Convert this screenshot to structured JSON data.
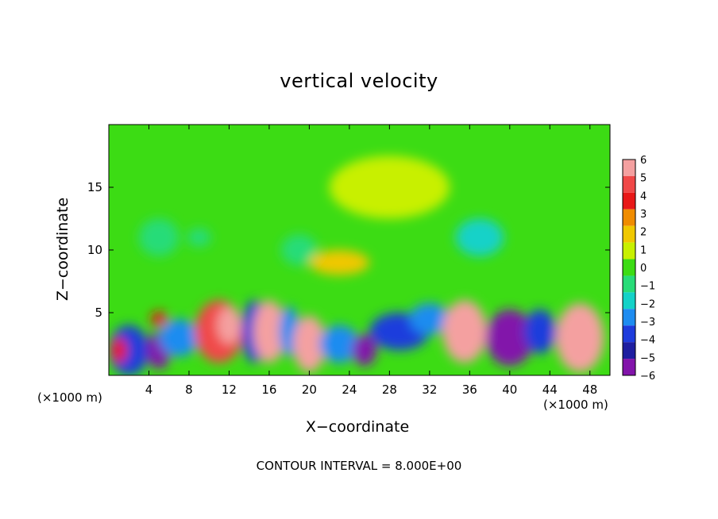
{
  "chart_data": {
    "type": "heatmap",
    "title": "vertical velocity",
    "xlabel": "X−coordinate",
    "ylabel": "Z−coordinate",
    "x_unit_left": "(×1000 m)",
    "x_unit_right": "(×1000 m)",
    "footer": "CONTOUR INTERVAL = 8.000E+00",
    "xlim": [
      0,
      50
    ],
    "ylim": [
      0,
      20
    ],
    "x_ticks": [
      4,
      8,
      12,
      16,
      20,
      24,
      28,
      32,
      36,
      40,
      44,
      48
    ],
    "x_tick_labels": [
      "4",
      "8",
      "12",
      "16",
      "20",
      "24",
      "28",
      "32",
      "36",
      "40",
      "44",
      "48"
    ],
    "y_ticks": [
      5,
      10,
      15
    ],
    "y_tick_labels": [
      "5",
      "10",
      "15"
    ],
    "colorbar": {
      "levels": [
        6,
        5,
        4,
        3,
        2,
        1,
        0,
        -1,
        -2,
        -3,
        -4,
        -5,
        -6
      ],
      "labels": [
        "6",
        "5",
        "4",
        "3",
        "2",
        "1",
        "0",
        "−1",
        "−2",
        "−3",
        "−4",
        "−5",
        "−6"
      ],
      "colors": [
        "#f4a0a0",
        "#f04848",
        "#e81818",
        "#f08c00",
        "#f0c800",
        "#c8f000",
        "#3cdc14",
        "#28dc78",
        "#14d2c8",
        "#1e8cf0",
        "#1e3cdc",
        "#1e1ea0",
        "#8214aa"
      ]
    },
    "cells": [
      {
        "x": 2,
        "z": 2,
        "w": 2.0,
        "h": 4,
        "value": -4
      },
      {
        "x": 5,
        "z": 2,
        "w": 1.2,
        "h": 3,
        "value": -6
      },
      {
        "x": 5,
        "z": 4.5,
        "w": 0.8,
        "h": 1.2,
        "value": 4
      },
      {
        "x": 7,
        "z": 3,
        "w": 2.0,
        "h": 3,
        "value": -3
      },
      {
        "x": 11,
        "z": 3.5,
        "w": 2.4,
        "h": 5,
        "value": 5
      },
      {
        "x": 12,
        "z": 4,
        "w": 1.2,
        "h": 3,
        "value": 6
      },
      {
        "x": 14.5,
        "z": 3.5,
        "w": 1.2,
        "h": 5,
        "value": -4
      },
      {
        "x": 16,
        "z": 3.5,
        "w": 1.6,
        "h": 5,
        "value": 6
      },
      {
        "x": 18,
        "z": 3.5,
        "w": 1.0,
        "h": 4,
        "value": -3
      },
      {
        "x": 20,
        "z": 2.5,
        "w": 1.6,
        "h": 4.5,
        "value": 6
      },
      {
        "x": 23,
        "z": 2.5,
        "w": 2.0,
        "h": 3,
        "value": -3
      },
      {
        "x": 25.5,
        "z": 2,
        "w": 1.2,
        "h": 2.5,
        "value": -6
      },
      {
        "x": 29,
        "z": 3.5,
        "w": 3.0,
        "h": 3,
        "value": -4
      },
      {
        "x": 32,
        "z": 4.5,
        "w": 2.0,
        "h": 2.5,
        "value": -3
      },
      {
        "x": 35.5,
        "z": 3.5,
        "w": 2.2,
        "h": 5,
        "value": 6
      },
      {
        "x": 40,
        "z": 3,
        "w": 2.4,
        "h": 4.5,
        "value": -6
      },
      {
        "x": 43,
        "z": 3.5,
        "w": 1.6,
        "h": 3.5,
        "value": -4
      },
      {
        "x": 47,
        "z": 3,
        "w": 2.4,
        "h": 5.5,
        "value": 6
      },
      {
        "x": 1,
        "z": 2,
        "w": 0.8,
        "h": 2,
        "value": 4
      },
      {
        "x": 9,
        "z": 11,
        "w": 1.2,
        "h": 1.5,
        "value": -1
      },
      {
        "x": 19,
        "z": 10,
        "w": 1.8,
        "h": 2.5,
        "value": -1
      },
      {
        "x": 23,
        "z": 9,
        "w": 3.0,
        "h": 2,
        "value": 2
      },
      {
        "x": 28,
        "z": 15,
        "w": 6.0,
        "h": 5,
        "value": 1
      },
      {
        "x": 37,
        "z": 11,
        "w": 2.4,
        "h": 3,
        "value": -2
      },
      {
        "x": 5,
        "z": 11,
        "w": 2.0,
        "h": 3,
        "value": -1
      }
    ]
  }
}
